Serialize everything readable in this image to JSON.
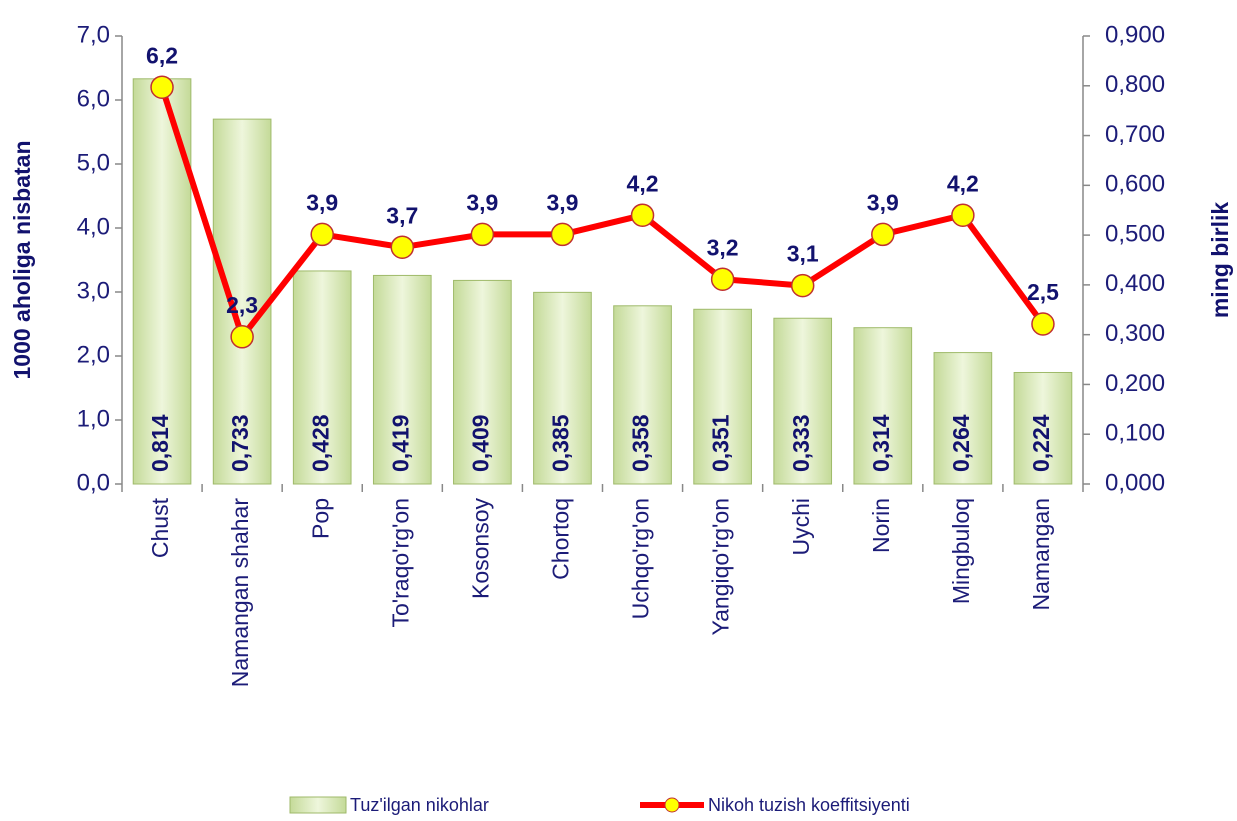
{
  "chart_data": {
    "type": "combo",
    "categories": [
      "Chust",
      "Namangan shahar",
      "Pop",
      "To'raqo'rg'on",
      "Kosonsoy",
      "Chortoq",
      "Uchqo'rg'on",
      "Yangiqo'rg'on",
      "Uychi",
      "Norin",
      "Mingbuloq",
      "Namangan"
    ],
    "ylabel": "1000 aholiga nisbatan",
    "y2label": "ming birlik",
    "ylim": [
      0,
      7
    ],
    "yticks": [
      {
        "value": 0,
        "label": "0,0"
      },
      {
        "value": 1,
        "label": "1,0"
      },
      {
        "value": 2,
        "label": "2,0"
      },
      {
        "value": 3,
        "label": "3,0"
      },
      {
        "value": 4,
        "label": "4,0"
      },
      {
        "value": 5,
        "label": "5,0"
      },
      {
        "value": 6,
        "label": "6,0"
      },
      {
        "value": 7,
        "label": "7,0"
      }
    ],
    "y2lim": [
      0,
      0.9
    ],
    "y2ticks": [
      {
        "value": 0,
        "label": "0,000"
      },
      {
        "value": 0.1,
        "label": "0,100"
      },
      {
        "value": 0.2,
        "label": "0,200"
      },
      {
        "value": 0.3,
        "label": "0,300"
      },
      {
        "value": 0.4,
        "label": "0,400"
      },
      {
        "value": 0.5,
        "label": "0,500"
      },
      {
        "value": 0.6,
        "label": "0,600"
      },
      {
        "value": 0.7,
        "label": "0,700"
      },
      {
        "value": 0.8,
        "label": "0,800"
      },
      {
        "value": 0.9,
        "label": "0,900"
      }
    ],
    "series": [
      {
        "name": "Tuz'ilgan nikohlar",
        "type": "bar",
        "axis": "y2",
        "color": "#c4da98",
        "values": [
          0.814,
          0.733,
          0.428,
          0.419,
          0.409,
          0.385,
          0.358,
          0.351,
          0.333,
          0.314,
          0.264,
          0.224
        ],
        "value_labels": [
          "0,814",
          "0,733",
          "0,428",
          "0,419",
          "0,409",
          "0,385",
          "0,358",
          "0,351",
          "0,333",
          "0,314",
          "0,264",
          "0,224"
        ]
      },
      {
        "name": "Nikoh tuzish koeffitsiyenti",
        "type": "line",
        "axis": "y",
        "color": "#ff0000",
        "marker_color": "#ffff00",
        "values": [
          6.2,
          2.3,
          3.9,
          3.7,
          3.9,
          3.9,
          4.2,
          3.2,
          3.1,
          3.9,
          4.2,
          2.5
        ],
        "value_labels": [
          "6,2",
          "2,3",
          "3,9",
          "3,7",
          "3,9",
          "3,9",
          "4,2",
          "3,2",
          "3,1",
          "3,9",
          "4,2",
          "2,5"
        ]
      }
    ]
  }
}
